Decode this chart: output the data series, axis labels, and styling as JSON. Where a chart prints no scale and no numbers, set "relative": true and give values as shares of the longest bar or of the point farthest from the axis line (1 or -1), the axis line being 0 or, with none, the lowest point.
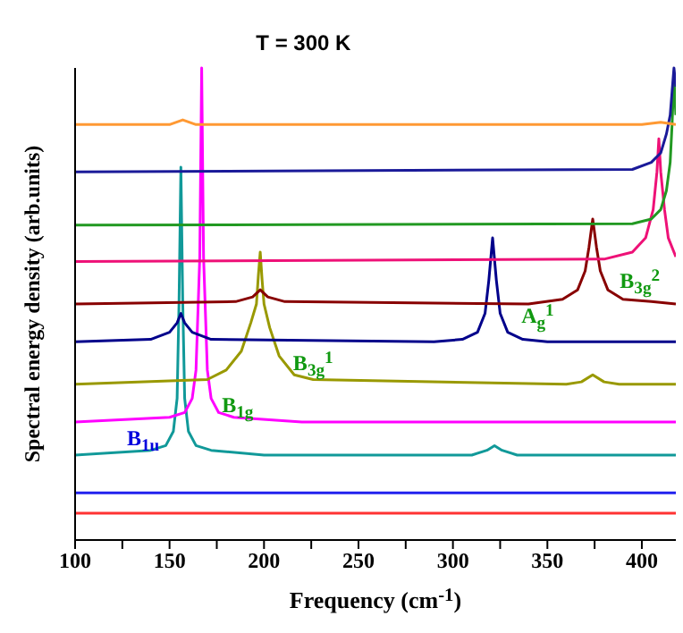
{
  "chart_data": {
    "type": "line",
    "relative": true,
    "xlabel": "Frequency (cm$^{-1}$)",
    "ylabel": "Spectral energy density (arb.units)",
    "xlim": [
      100,
      418
    ],
    "xticks": [
      100,
      {
        "value": 125,
        "label": null
      },
      150,
      {
        "value": 175,
        "label": null
      },
      200,
      {
        "value": 225,
        "label": null
      },
      250,
      {
        "value": 275,
        "label": null
      },
      300,
      {
        "value": 325,
        "label": null
      },
      350,
      {
        "value": 375,
        "label": null
      },
      400
    ],
    "annotations": [
      "T = 300 K",
      {
        "text": "B$_{1u}$",
        "x": 136,
        "y": 0.2
      },
      {
        "text": "B$_{1g}$",
        "x": 186,
        "y": 0.27
      },
      {
        "text": "B$_{3g}$$^{1}$",
        "x": 226,
        "y": 0.36
      },
      "A$_{g}$$^{1}$",
      "B$_{3g}$$^{2}$"
    ],
    "series": [
      {
        "color": "#ff3333",
        "x": [
          100,
          418
        ],
        "values": [
          0.057,
          0.057
        ]
      },
      {
        "color": "#2222ee",
        "x": [
          100,
          418
        ],
        "values": [
          0.1,
          0.1
        ]
      },
      {
        "color": "#119999",
        "x": [
          100,
          140,
          148,
          152,
          154,
          155,
          156,
          157,
          158,
          160,
          164,
          172,
          200,
          310,
          318,
          322,
          326,
          334,
          418
        ],
        "values": [
          0.18,
          0.19,
          0.2,
          0.23,
          0.3,
          0.5,
          0.79,
          0.5,
          0.3,
          0.23,
          0.2,
          0.19,
          0.18,
          0.18,
          0.19,
          0.2,
          0.19,
          0.18,
          0.18
        ]
      },
      {
        "color": "#ff00ff",
        "x": [
          100,
          150,
          158,
          162,
          164,
          166,
          167,
          168,
          170,
          172,
          176,
          184,
          220,
          418
        ],
        "values": [
          0.25,
          0.26,
          0.27,
          0.3,
          0.36,
          0.6,
          1,
          0.6,
          0.36,
          0.3,
          0.27,
          0.26,
          0.25,
          0.25
        ]
      },
      {
        "color": "#999900",
        "x": [
          100,
          170,
          180,
          188,
          193,
          196,
          197,
          198,
          199,
          200,
          203,
          208,
          216,
          226,
          360,
          368,
          374,
          380,
          388,
          418
        ],
        "values": [
          0.33,
          0.34,
          0.36,
          0.4,
          0.46,
          0.5,
          0.56,
          0.61,
          0.55,
          0.5,
          0.45,
          0.39,
          0.35,
          0.34,
          0.33,
          0.335,
          0.35,
          0.335,
          0.33,
          0.33
        ]
      },
      {
        "color": "#00008b",
        "x": [
          100,
          140,
          150,
          154,
          156,
          158,
          162,
          172,
          290,
          305,
          313,
          317,
          319,
          321,
          323,
          325,
          329,
          337,
          350,
          418
        ],
        "values": [
          0.42,
          0.425,
          0.44,
          0.46,
          0.48,
          0.46,
          0.44,
          0.425,
          0.42,
          0.425,
          0.44,
          0.48,
          0.55,
          0.64,
          0.55,
          0.48,
          0.44,
          0.425,
          0.42,
          0.42
        ]
      },
      {
        "color": "#880000",
        "x": [
          100,
          185,
          194,
          198,
          202,
          211,
          340,
          358,
          366,
          370,
          372,
          374,
          376,
          378,
          382,
          390,
          405,
          418
        ],
        "values": [
          0.5,
          0.505,
          0.515,
          0.53,
          0.515,
          0.505,
          0.5,
          0.51,
          0.53,
          0.57,
          0.62,
          0.68,
          0.62,
          0.57,
          0.53,
          0.51,
          0.505,
          0.5
        ]
      },
      {
        "color": "#ee1177",
        "x": [
          100,
          380,
          395,
          402,
          406,
          408,
          409,
          410,
          412,
          414,
          418
        ],
        "values": [
          0.59,
          0.595,
          0.61,
          0.64,
          0.7,
          0.78,
          0.85,
          0.78,
          0.7,
          0.64,
          0.6
        ]
      },
      {
        "color": "#229922",
        "x": [
          100,
          395,
          405,
          410,
          413,
          415,
          416,
          417,
          418
        ],
        "values": [
          0.667,
          0.67,
          0.68,
          0.7,
          0.74,
          0.8,
          0.88,
          0.98,
          0.9
        ]
      },
      {
        "color": "#1a1a99",
        "x": [
          100,
          395,
          405,
          410,
          413,
          415,
          416,
          417,
          418
        ],
        "values": [
          0.78,
          0.785,
          0.8,
          0.82,
          0.86,
          0.9,
          0.95,
          1,
          0.96
        ]
      },
      {
        "color": "#ff9933",
        "x": [
          100,
          150,
          157,
          164,
          400,
          410,
          418
        ],
        "values": [
          0.88,
          0.88,
          0.89,
          0.88,
          0.88,
          0.885,
          0.88
        ]
      }
    ]
  }
}
